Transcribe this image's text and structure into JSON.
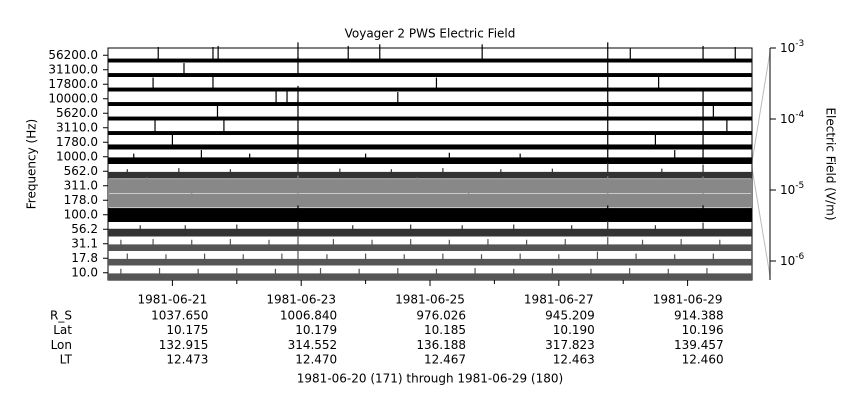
{
  "chart_data": {
    "type": "line-spectra",
    "title": "Voyager 2 PWS Electric Field",
    "y_label": "Frequency (Hz)",
    "y2_label": "Electric Field (V/m)",
    "x_label": "1981-06-20 (171) through 1981-06-29 (180)",
    "xlim": [
      171,
      181
    ],
    "xticks": [
      {
        "value": 172,
        "label": "1981-06-21"
      },
      {
        "value": 174,
        "label": "1981-06-23"
      },
      {
        "value": 176,
        "label": "1981-06-25"
      },
      {
        "value": 178,
        "label": "1981-06-27"
      },
      {
        "value": 180,
        "label": "1981-06-29"
      }
    ],
    "minor_xticks": [
      173,
      175,
      177,
      179
    ],
    "y2lim": [
      5.4e-07,
      0.001
    ],
    "y2log": true,
    "y2ticks": [
      {
        "value": 0.001,
        "label": "10",
        "exponent": "-3"
      },
      {
        "value": 0.0001,
        "label": "10",
        "exponent": "-4"
      },
      {
        "value": 1e-05,
        "label": "10",
        "exponent": "-5"
      },
      {
        "value": 1e-06,
        "label": "10",
        "exponent": "-6"
      }
    ],
    "channels": [
      {
        "name": "56200.0",
        "background": 1.5e-06,
        "color": "#000000",
        "x": [
          171.78,
          172.63,
          172.71,
          173.95,
          174.73,
          175.22,
          176.81,
          178.76,
          179.11,
          180.24,
          180.74
        ],
        "values": [
          3e-05,
          3e-05,
          4e-05,
          0.0001,
          4e-05,
          6e-05,
          6e-05,
          0.0001,
          2e-05,
          4e-05,
          3e-05
        ]
      },
      {
        "name": "31100.0",
        "background": 1.5e-06,
        "color": "#000000",
        "x": [
          172.18,
          173.95,
          178.76
        ],
        "values": [
          2e-05,
          0.0001,
          4e-05
        ]
      },
      {
        "name": "17800.0",
        "background": 1.5e-06,
        "color": "#000000",
        "x": [
          171.7,
          172.63,
          176.1,
          178.76,
          179.55
        ],
        "values": [
          2e-05,
          6e-05,
          2e-05,
          4e-05,
          3e-05
        ]
      },
      {
        "name": "10000.0",
        "background": 1.5e-06,
        "color": "#000000",
        "x": [
          173.61,
          173.78,
          173.95,
          175.5,
          178.76,
          180.24
        ],
        "values": [
          6e-05,
          6e-05,
          0.0001,
          2e-05,
          6e-05,
          6e-05
        ]
      },
      {
        "name": "5620.0",
        "background": 1.5e-06,
        "color": "#000000",
        "x": [
          172.7,
          173.95,
          178.76,
          180.24,
          180.4
        ],
        "values": [
          4e-05,
          0.0001,
          0.0001,
          4e-05,
          3e-05
        ]
      },
      {
        "name": "3110.0",
        "background": 1.5e-06,
        "color": "#000000",
        "x": [
          171.73,
          172.8,
          173.95,
          178.76,
          180.24,
          180.61
        ],
        "values": [
          3e-05,
          3e-05,
          6e-05,
          3e-05,
          6e-05,
          3e-05
        ]
      },
      {
        "name": "1780.0",
        "background": 2e-06,
        "color": "#000000",
        "x": [
          172.0,
          173.95,
          178.76,
          179.5,
          180.24
        ],
        "values": [
          4e-05,
          8e-05,
          3e-05,
          3e-05,
          4e-05
        ]
      },
      {
        "name": "1000.0",
        "background": 3e-06,
        "color": "#000000",
        "x": [
          171.4,
          172.45,
          173.2,
          173.95,
          175.0,
          176.3,
          177.4,
          178.76,
          179.8,
          180.24
        ],
        "values": [
          8e-06,
          2e-05,
          8e-06,
          0.0001,
          8e-06,
          1e-05,
          8e-06,
          3e-05,
          2e-05,
          6e-05
        ]
      },
      {
        "name": "562.0",
        "background": 3e-06,
        "color": "#333333",
        "x": [
          171.3,
          172.1,
          172.9,
          173.95,
          174.6,
          175.4,
          176.2,
          177.1,
          177.9,
          178.76,
          179.6,
          180.24
        ],
        "values": [
          6e-06,
          8e-06,
          6e-06,
          4e-05,
          7e-06,
          6e-06,
          8e-06,
          6e-06,
          7e-06,
          3e-05,
          7e-06,
          2e-05
        ]
      },
      {
        "name": "311.0",
        "background": 2e-05,
        "color": "#888888",
        "x": [
          171.6,
          173.95,
          175.8,
          178.76,
          180.24
        ],
        "values": [
          3e-05,
          5e-05,
          3e-05,
          4e-05,
          4e-05
        ]
      },
      {
        "name": "178.0",
        "background": 2e-05,
        "color": "#888888",
        "x": [
          172.3,
          173.95,
          176.6,
          178.76,
          180.24
        ],
        "values": [
          3e-05,
          5e-05,
          3e-05,
          4e-05,
          4e-05
        ]
      },
      {
        "name": "100.0",
        "background": 2e-05,
        "color": "#000000",
        "x": [
          173.95,
          178.76,
          180.24
        ],
        "values": [
          4e-05,
          4e-05,
          4e-05
        ]
      },
      {
        "name": "56.2",
        "background": 4e-06,
        "color": "#333333",
        "x": [
          171.5,
          172.2,
          173.0,
          173.95,
          174.8,
          175.7,
          176.5,
          177.3,
          178.2,
          178.76,
          179.5,
          180.24
        ],
        "values": [
          1e-05,
          1e-05,
          1.2e-05,
          3e-05,
          1e-05,
          1.2e-05,
          1e-05,
          1.2e-05,
          1e-05,
          3e-05,
          1e-05,
          2e-05
        ]
      },
      {
        "name": "31.1",
        "background": 3e-06,
        "color": "#555555",
        "x": [
          171.2,
          171.7,
          172.3,
          172.9,
          173.5,
          173.95,
          174.5,
          175.1,
          175.7,
          176.3,
          176.9,
          177.5,
          178.1,
          178.76,
          179.3,
          179.9,
          180.5
        ],
        "values": [
          1e-05,
          1.2e-05,
          1e-05,
          1.2e-05,
          1e-05,
          3e-05,
          1.2e-05,
          1e-05,
          1.2e-05,
          1e-05,
          1.2e-05,
          1e-05,
          1.2e-05,
          2e-05,
          1e-05,
          1.2e-05,
          1e-05
        ]
      },
      {
        "name": "17.8",
        "background": 3e-06,
        "color": "#555555",
        "x": [
          171.3,
          171.9,
          172.5,
          173.1,
          173.7,
          173.95,
          174.4,
          175.0,
          175.6,
          176.2,
          176.8,
          177.4,
          178.0,
          178.6,
          179.2,
          179.8,
          180.4
        ],
        "values": [
          1.2e-05,
          1e-05,
          1.2e-05,
          1e-05,
          1.2e-05,
          3e-05,
          1e-05,
          1.2e-05,
          1e-05,
          1.2e-05,
          1e-05,
          1.2e-05,
          1e-05,
          2e-05,
          1.2e-05,
          1e-05,
          1.2e-05
        ]
      },
      {
        "name": "10.0",
        "background": 3e-06,
        "color": "#555555",
        "x": [
          171.2,
          171.8,
          172.4,
          173.0,
          173.6,
          173.95,
          174.3,
          174.9,
          175.5,
          176.1,
          176.7,
          177.3,
          177.9,
          178.5,
          179.1,
          179.7,
          180.3
        ],
        "values": [
          1e-05,
          1.2e-05,
          1e-05,
          1.2e-05,
          1e-05,
          3e-05,
          1.2e-05,
          1e-05,
          1.2e-05,
          1e-05,
          1.2e-05,
          1e-05,
          1.2e-05,
          1e-05,
          1.2e-05,
          1e-05,
          1.2e-05
        ]
      }
    ],
    "ephemeris": [
      {
        "label": "R_S",
        "values": [
          "1037.650",
          "1006.840",
          "976.026",
          "945.209",
          "914.388"
        ]
      },
      {
        "label": "Lat",
        "values": [
          "10.175",
          "10.179",
          "10.185",
          "10.190",
          "10.196"
        ]
      },
      {
        "label": "Lon",
        "values": [
          "132.915",
          "314.552",
          "136.188",
          "317.823",
          "139.457"
        ]
      },
      {
        "label": "LT",
        "values": [
          "12.473",
          "12.470",
          "12.467",
          "12.463",
          "12.460"
        ]
      }
    ]
  }
}
